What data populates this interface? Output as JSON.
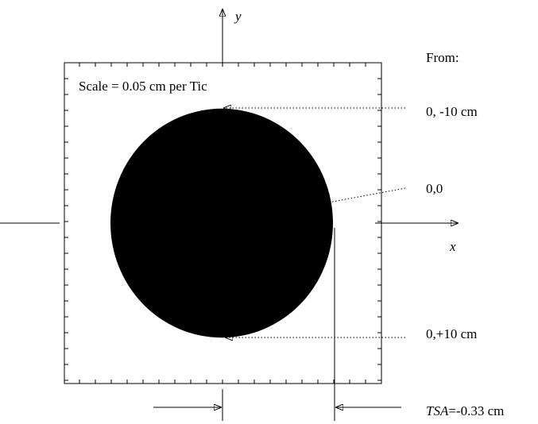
{
  "axes": {
    "x": "x",
    "y": "y"
  },
  "scale_note": "Scale = 0.05 cm per Tic",
  "legend": {
    "heading": "From:",
    "items": [
      "0, -10 cm",
      "0,0",
      "0,+10 cm"
    ]
  },
  "tsa": {
    "symbol": "TSA",
    "value": "=-0.33 cm"
  }
}
